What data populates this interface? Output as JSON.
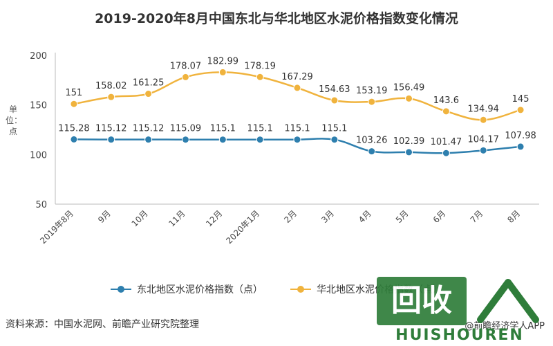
{
  "page": {
    "title": "2019-2020年8月中国东北与华北地区水泥价格指数变化情况",
    "source": "资料来源：中国水泥网、前瞻产业研究院整理",
    "credit": "@前瞻经济学人APP",
    "watermark_logo_text": "回收",
    "watermark_brand": "HUISHOUREN"
  },
  "chart_data": {
    "type": "line",
    "title": "2019-2020年8月中国东北与华北地区水泥价格指数变化情况",
    "ylabel": "单位：点",
    "xlabel": "",
    "ylim": [
      50,
      200
    ],
    "yticks": [
      50,
      100,
      150,
      200
    ],
    "categories": [
      "2019年8月",
      "9月",
      "10月",
      "11月",
      "12月",
      "2020年1月",
      "2月",
      "3月",
      "4月",
      "5月",
      "6月",
      "7月",
      "8月"
    ],
    "grid": false,
    "legend_position": "bottom",
    "series": [
      {
        "name": "东北地区水泥价格指数（点）",
        "color": "#2e7fae",
        "values": [
          115.28,
          115.12,
          115.12,
          115.09,
          115.1,
          115.1,
          115.1,
          115.1,
          103.26,
          102.39,
          101.47,
          104.17,
          107.98
        ],
        "labels": [
          "115.28",
          "115.12",
          "115.12",
          "115.09",
          "115.1",
          "115.1",
          "115.1",
          "115.1",
          "103.26",
          "102.39",
          "101.47",
          "104.17",
          "107.98"
        ]
      },
      {
        "name": "华北地区水泥价格指数（点）",
        "color": "#f0b33d",
        "values": [
          151,
          158.02,
          161.25,
          178.07,
          182.99,
          178.19,
          167.29,
          154.63,
          153.19,
          156.49,
          143.6,
          134.94,
          145
        ],
        "labels": [
          "151",
          "158.02",
          "161.25",
          "178.07",
          "182.99",
          "178.19",
          "167.29",
          "154.63",
          "153.19",
          "156.49",
          "143.6",
          "134.94",
          "145"
        ]
      }
    ]
  }
}
